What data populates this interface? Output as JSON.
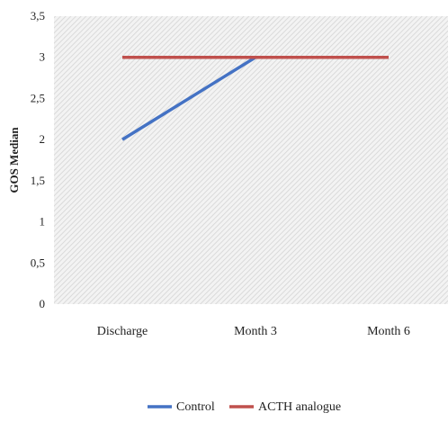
{
  "chart_data": {
    "type": "line",
    "title": "",
    "xlabel": "",
    "ylabel": "GOS Median",
    "categories": [
      "Discharge",
      "Month 3",
      "Month 6"
    ],
    "ylim": [
      0,
      3.5
    ],
    "ytick_values": [
      0,
      0.5,
      1,
      1.5,
      2,
      2.5,
      3,
      3.5
    ],
    "ytick_labels": [
      "0",
      "0,5",
      "1",
      "1,5",
      "2",
      "2,5",
      "3",
      "3,5"
    ],
    "series": [
      {
        "name": "Control",
        "values": [
          2,
          3,
          3
        ],
        "color": "#4472C4"
      },
      {
        "name": "ACTH analogue",
        "values": [
          3,
          3,
          3
        ],
        "color": "#C0504D"
      }
    ],
    "grid": false,
    "plot_background": "hatched grey",
    "legend_position": "bottom"
  }
}
